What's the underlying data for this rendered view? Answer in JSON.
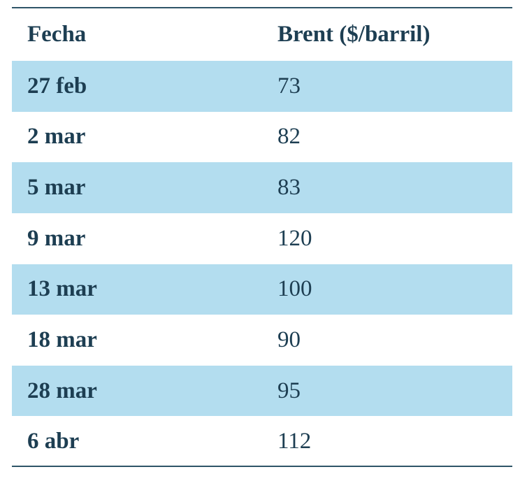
{
  "table": {
    "header": [
      "Fecha",
      "Brent ($/barril)"
    ],
    "rows": [
      [
        "27 feb",
        73
      ],
      [
        "2 mar",
        82
      ],
      [
        "5 mar",
        83
      ],
      [
        "9 mar",
        120
      ],
      [
        "13 mar",
        100
      ],
      [
        "18 mar",
        90
      ],
      [
        "28 mar",
        95
      ],
      [
        "6 abr",
        112
      ]
    ]
  }
}
